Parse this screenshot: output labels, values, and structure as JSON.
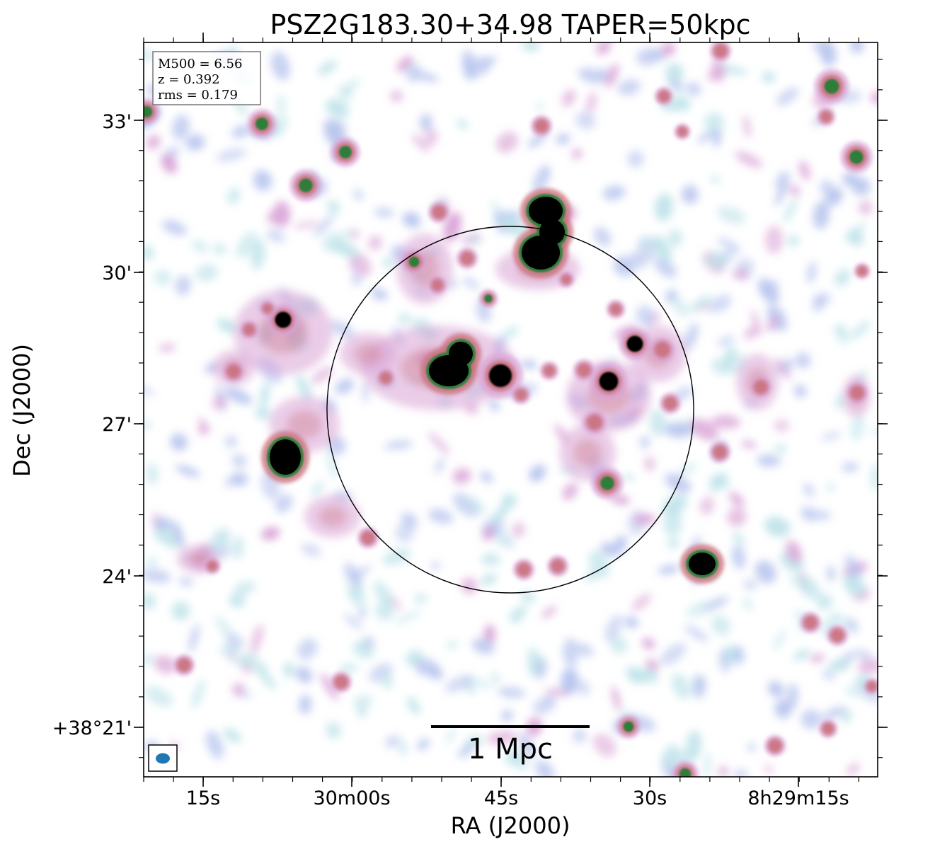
{
  "title": "PSZ2G183.30+34.98 TAPER=50kpc",
  "x_axis": {
    "label": "RA (J2000)",
    "ticks": [
      "15s",
      "30m00s",
      "45s",
      "30s",
      "8h29m15s"
    ]
  },
  "y_axis": {
    "label": "Dec (J2000)",
    "ticks": [
      "33'",
      "30'",
      "27'",
      "24'",
      "+38°21'"
    ]
  },
  "info_box": {
    "lines": [
      "M500 = 6.56",
      "z = 0.392",
      "rms = 0.179"
    ]
  },
  "scale_bar": {
    "label": "1 Mpc"
  },
  "colors": {
    "noise_light": "#bfe3ea",
    "noise_blue": "#b7c4ee",
    "noise_pink": "#d9a3d6",
    "emission_red": "#c9707c",
    "emission_green": "#2e7d3a",
    "core_black": "#000000",
    "beam": "#1f77b4"
  }
}
